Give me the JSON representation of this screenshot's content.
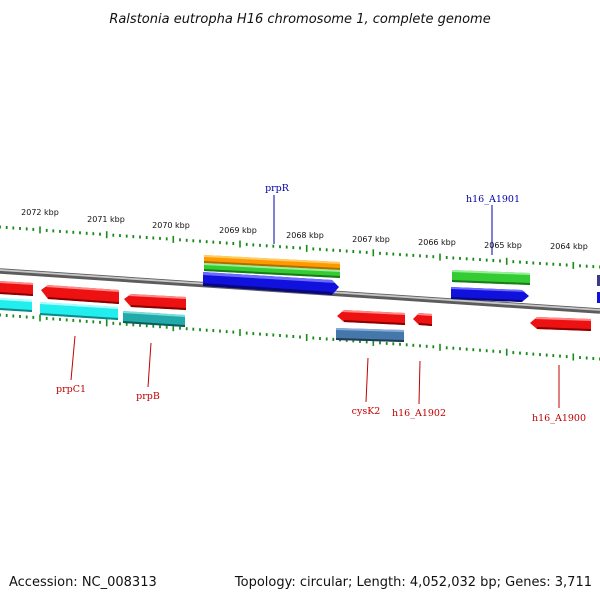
{
  "title": "Ralstonia eutropha H16 chromosome 1, complete genome",
  "footer": {
    "accession": "Accession: NC_008313",
    "summary": "Topology: circular; Length: 4,052,032 bp; Genes: 3,711"
  },
  "scale_labels": [
    "2072 kbp",
    "2071 kbp",
    "2070 kbp",
    "2069 kbp",
    "2068 kbp",
    "2067 kbp",
    "2066 kbp",
    "2065 kbp",
    "2064 kbp"
  ],
  "gene_labels": {
    "prpR": "prpR",
    "h16_A1901": "h16_A1901",
    "prpC1": "prpC1",
    "prpB": "prpB",
    "cysK2": "cysK2",
    "h16_A1902": "h16_A1902",
    "h16_A1900": "h16_A1900"
  },
  "colors": {
    "forward_label": "#0000aa",
    "reverse_label": "#c00000",
    "tick": "#1a8a1a",
    "backbone": "#8a8a8a",
    "red": "#ee1111",
    "blue": "#1111dd",
    "green": "#33cc33",
    "orange": "#ff9900",
    "cyan": "#22eeee",
    "teal": "#22aaaa",
    "steelblue": "#4477aa"
  }
}
